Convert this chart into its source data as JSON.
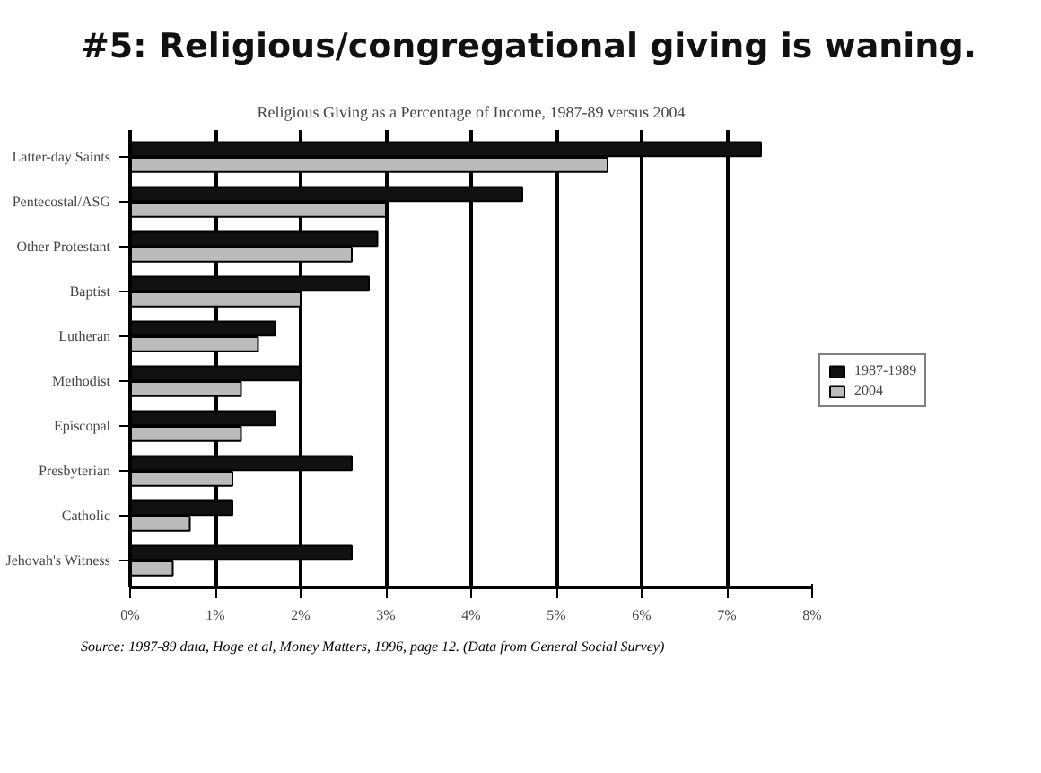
{
  "chart_data": {
    "type": "bar",
    "orientation": "horizontal",
    "title": "#5: Religious/congregational giving is waning.",
    "subtitle": "Religious Giving as a Percentage of Income, 1987-89 versus 2004",
    "categories": [
      "Latter-day Saints",
      "Pentecostal/ASG",
      "Other Protestant",
      "Baptist",
      "Lutheran",
      "Methodist",
      "Episcopal",
      "Presbyterian",
      "Catholic",
      "Jehovah's Witness"
    ],
    "series": [
      {
        "name": "1987-1989",
        "color": "#111111",
        "values": [
          7.4,
          4.6,
          2.9,
          2.8,
          1.7,
          2.0,
          1.7,
          2.6,
          1.2,
          2.6
        ]
      },
      {
        "name": "2004",
        "color": "#bbbbbb",
        "values": [
          5.6,
          3.0,
          2.6,
          2.0,
          1.5,
          1.3,
          1.3,
          1.2,
          0.7,
          0.5
        ]
      }
    ],
    "xlim": [
      0,
      8
    ],
    "xticks": [
      {
        "value": 0,
        "label": "0%"
      },
      {
        "value": 1,
        "label": "1%"
      },
      {
        "value": 2,
        "label": "2%"
      },
      {
        "value": 3,
        "label": "3%"
      },
      {
        "value": 4,
        "label": "4%"
      },
      {
        "value": 5,
        "label": "5%"
      },
      {
        "value": 6,
        "label": "6%"
      },
      {
        "value": 7,
        "label": "7%"
      },
      {
        "value": 8,
        "label": "8%"
      }
    ],
    "grid": "x",
    "legend": "right",
    "annotations": [
      "Source: 1987-89 data, Hoge et al, Money Matters, 1996, page 12. (Data from General Social Survey)"
    ]
  }
}
